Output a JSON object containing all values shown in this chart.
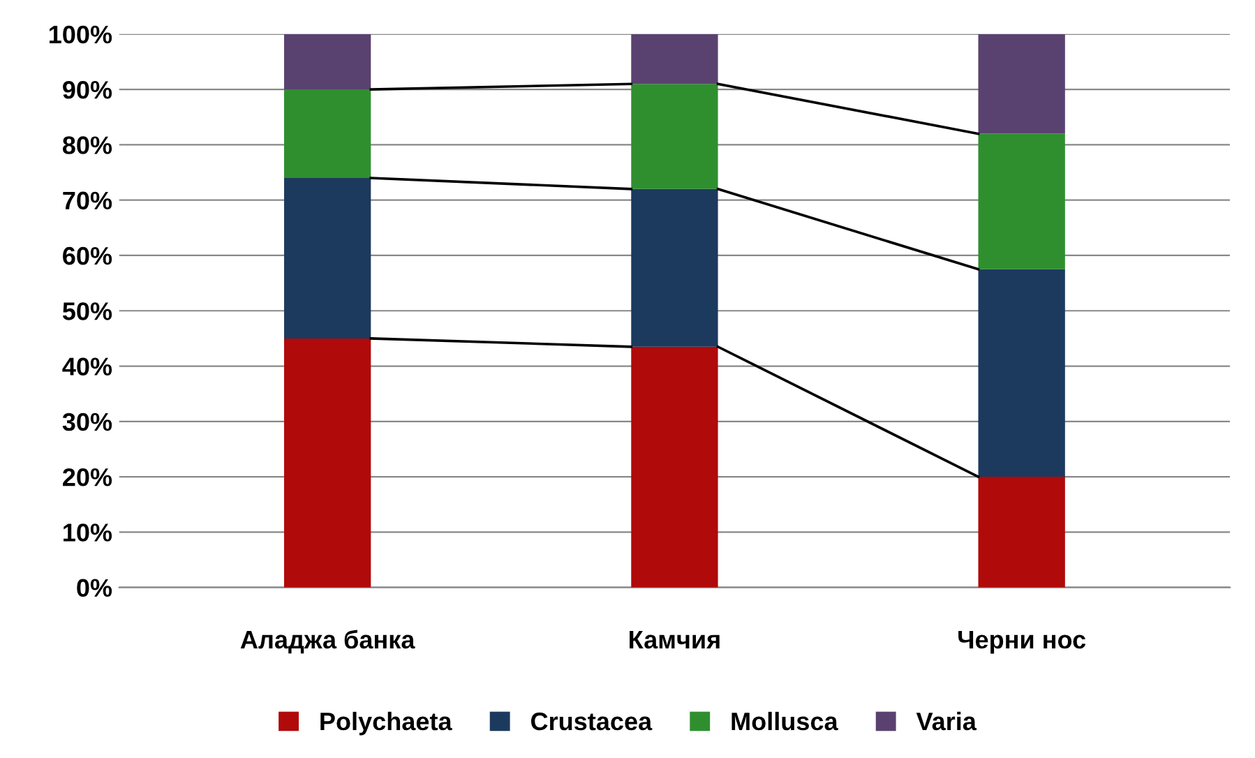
{
  "chart_data": {
    "type": "bar",
    "stacked": true,
    "categories": [
      "Аладжа банка",
      "Камчия",
      "Черни нос"
    ],
    "series": [
      {
        "name": "Polychaeta",
        "color": "#b00a0a",
        "values": [
          45,
          43.5,
          20
        ]
      },
      {
        "name": "Crustacea",
        "color": "#1c3a5e",
        "values": [
          29,
          28.5,
          37.5
        ]
      },
      {
        "name": "Mollusca",
        "color": "#2f8f2f",
        "values": [
          16,
          19,
          24.5
        ]
      },
      {
        "name": "Varia",
        "color": "#5a4270",
        "values": [
          10,
          9,
          18
        ]
      }
    ],
    "ylim": [
      0,
      100
    ],
    "yticks": [
      {
        "value": 0,
        "label": "0%"
      },
      {
        "value": 10,
        "label": "10%"
      },
      {
        "value": 20,
        "label": "20%"
      },
      {
        "value": 30,
        "label": "30%"
      },
      {
        "value": 40,
        "label": "40%"
      },
      {
        "value": 50,
        "label": "50%"
      },
      {
        "value": 60,
        "label": "60%"
      },
      {
        "value": 70,
        "label": "70%"
      },
      {
        "value": 80,
        "label": "80%"
      },
      {
        "value": 90,
        "label": "90%"
      },
      {
        "value": 100,
        "label": "100%"
      }
    ],
    "grid": "y",
    "legend": "bottom"
  }
}
